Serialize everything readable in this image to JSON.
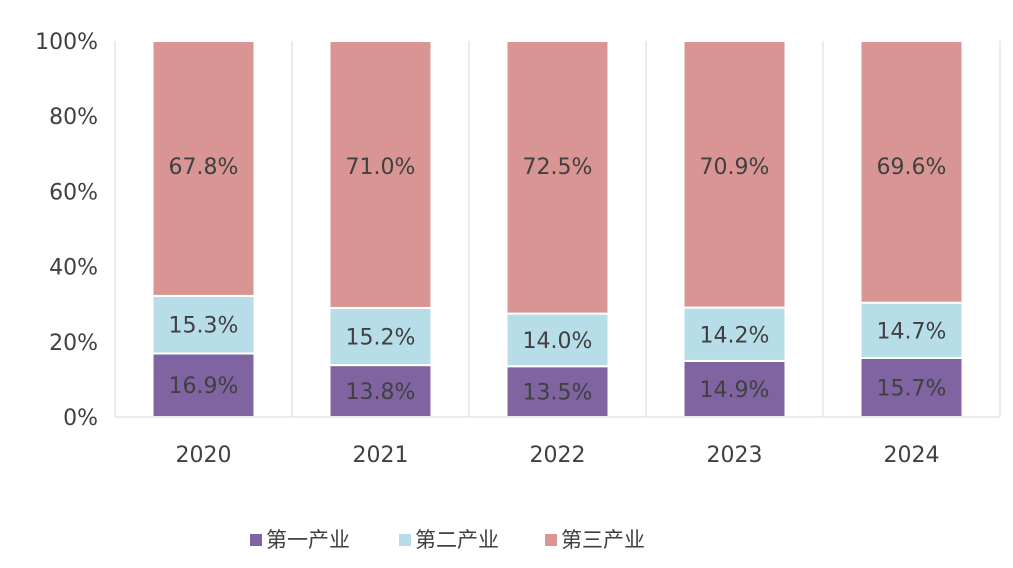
{
  "chart_data": {
    "type": "bar",
    "stacked": true,
    "percent_stacked": true,
    "categories": [
      "2020",
      "2021",
      "2022",
      "2023",
      "2024"
    ],
    "series": [
      {
        "name": "第一产业",
        "values": [
          16.9,
          13.8,
          13.5,
          14.9,
          15.7
        ],
        "color": "#8064a2"
      },
      {
        "name": "第二产业",
        "values": [
          15.3,
          15.2,
          14.0,
          14.2,
          14.7
        ],
        "color": "#b7dee8"
      },
      {
        "name": "第三产业",
        "values": [
          67.8,
          71.0,
          72.5,
          70.9,
          69.6
        ],
        "color": "#d99594"
      }
    ],
    "data_labels": [
      [
        "16.9%",
        "13.8%",
        "13.5%",
        "14.9%",
        "15.7%"
      ],
      [
        "15.3%",
        "15.2%",
        "14.0%",
        "14.2%",
        "14.7%"
      ],
      [
        "67.8%",
        "71.0%",
        "72.5%",
        "70.9%",
        "69.6%"
      ]
    ],
    "y_ticks": [
      "0%",
      "20%",
      "40%",
      "60%",
      "80%",
      "100%"
    ],
    "ylim": [
      0,
      100
    ],
    "grid": "vertical",
    "legend": "bottom",
    "title": "",
    "xlabel": "",
    "ylabel": ""
  }
}
